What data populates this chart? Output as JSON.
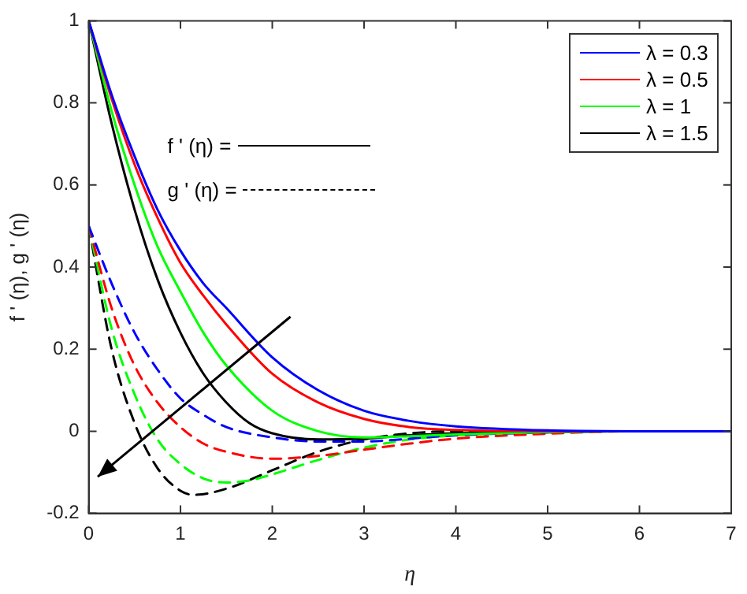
{
  "chart_data": {
    "type": "line",
    "xlabel": "η",
    "ylabel": "f ' (η), g ' (η)",
    "xlim": [
      0,
      7
    ],
    "ylim": [
      -0.2,
      1
    ],
    "xticks": [
      0,
      1,
      2,
      3,
      4,
      5,
      6,
      7
    ],
    "yticks": [
      -0.2,
      0,
      0.2,
      0.4,
      0.6,
      0.8,
      1
    ],
    "grid": false,
    "legend": "top right",
    "marker": "none",
    "annotations": [
      "f ' (η) =",
      "g ' (η) ="
    ],
    "series": [
      {
        "name": "λ = 0.3",
        "color": "#0000ff",
        "line_style": "solid",
        "x": [
          0,
          0.25,
          0.5,
          0.75,
          1,
          1.25,
          1.5,
          2,
          2.5,
          3,
          3.5,
          4,
          5,
          6,
          7
        ],
        "values": [
          1,
          0.82,
          0.67,
          0.54,
          0.44,
          0.36,
          0.3,
          0.18,
          0.1,
          0.05,
          0.025,
          0.012,
          0.002,
          0,
          0
        ]
      },
      {
        "name": "λ = 0.5",
        "color": "#ff0000",
        "line_style": "solid",
        "x": [
          0,
          0.25,
          0.5,
          0.75,
          1,
          1.25,
          1.5,
          2,
          2.5,
          3,
          3.5,
          4,
          5,
          6,
          7
        ],
        "values": [
          1,
          0.81,
          0.65,
          0.52,
          0.41,
          0.33,
          0.26,
          0.14,
          0.07,
          0.03,
          0.01,
          0.003,
          0,
          0,
          0
        ]
      },
      {
        "name": "λ = 1",
        "color": "#00ff00",
        "line_style": "solid",
        "x": [
          0,
          0.25,
          0.5,
          0.75,
          1,
          1.25,
          1.5,
          2,
          2.5,
          3,
          3.5,
          4,
          5,
          6,
          7
        ],
        "values": [
          1,
          0.78,
          0.6,
          0.45,
          0.34,
          0.24,
          0.16,
          0.05,
          0,
          -0.015,
          -0.012,
          -0.008,
          -0.002,
          0,
          0
        ]
      },
      {
        "name": "λ = 1.5",
        "color": "#000000",
        "line_style": "solid",
        "x": [
          0,
          0.25,
          0.5,
          0.75,
          1,
          1.25,
          1.5,
          1.75,
          2,
          2.5,
          3,
          3.5,
          4,
          5,
          6,
          7
        ],
        "values": [
          1,
          0.75,
          0.54,
          0.37,
          0.24,
          0.14,
          0.07,
          0.02,
          -0.005,
          -0.02,
          -0.018,
          -0.01,
          -0.005,
          0,
          0,
          0
        ]
      },
      {
        "color": "#0000ff",
        "line_style": "dashed",
        "x": [
          0,
          0.25,
          0.5,
          0.75,
          1,
          1.25,
          1.5,
          2,
          2.5,
          3,
          3.5,
          4,
          5,
          6,
          7
        ],
        "values": [
          0.5,
          0.36,
          0.24,
          0.15,
          0.08,
          0.04,
          0.01,
          -0.015,
          -0.025,
          -0.025,
          -0.018,
          -0.01,
          -0.003,
          0,
          0
        ]
      },
      {
        "color": "#ff0000",
        "line_style": "dashed",
        "x": [
          0,
          0.25,
          0.5,
          0.75,
          1,
          1.25,
          1.5,
          2,
          2.5,
          3,
          3.5,
          4,
          5,
          6,
          7
        ],
        "values": [
          0.5,
          0.3,
          0.16,
          0.07,
          0.01,
          -0.03,
          -0.05,
          -0.067,
          -0.06,
          -0.045,
          -0.03,
          -0.018,
          -0.006,
          0,
          0
        ]
      },
      {
        "color": "#00ff00",
        "line_style": "dashed",
        "x": [
          0,
          0.25,
          0.5,
          0.75,
          1,
          1.25,
          1.5,
          1.75,
          2,
          2.5,
          3,
          3.5,
          4,
          5,
          6,
          7
        ],
        "values": [
          0.5,
          0.25,
          0.09,
          -0.02,
          -0.08,
          -0.115,
          -0.125,
          -0.12,
          -0.105,
          -0.07,
          -0.04,
          -0.02,
          -0.01,
          -0.002,
          0,
          0
        ]
      },
      {
        "color": "#000000",
        "line_style": "dashed",
        "x": [
          0,
          0.25,
          0.5,
          0.75,
          1,
          1.15,
          1.5,
          2,
          2.5,
          3,
          3.5,
          4,
          5,
          6,
          7
        ],
        "values": [
          0.5,
          0.2,
          0.02,
          -0.09,
          -0.145,
          -0.155,
          -0.14,
          -0.095,
          -0.05,
          -0.02,
          -0.005,
          0,
          0,
          0,
          0
        ]
      }
    ]
  }
}
